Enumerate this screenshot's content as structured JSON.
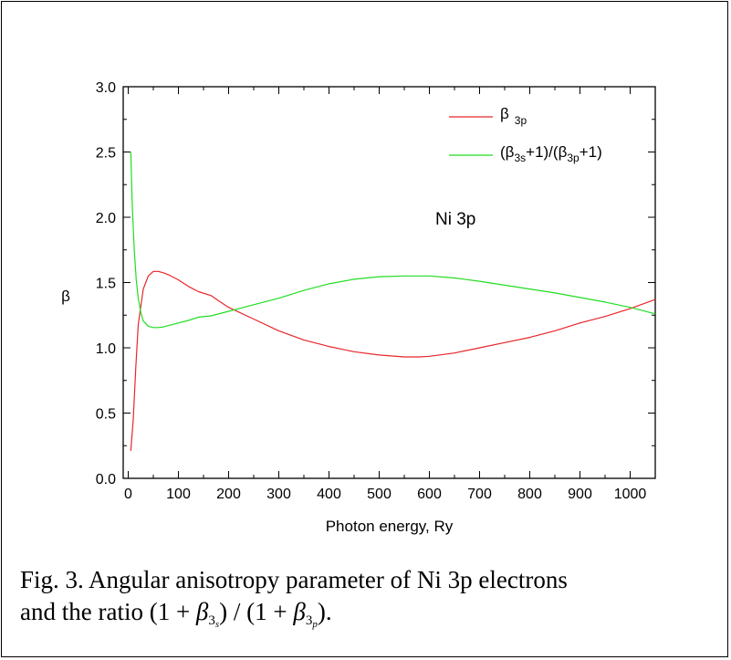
{
  "chart_data": {
    "type": "line",
    "xlabel": "Photon energy, Ry",
    "ylabel": "β",
    "xlim": [
      -10,
      1050
    ],
    "ylim": [
      0.0,
      3.0
    ],
    "xticks": [
      0,
      100,
      200,
      300,
      400,
      500,
      600,
      700,
      800,
      900,
      1000
    ],
    "yticks": [
      "0.0",
      "0.5",
      "1.0",
      "1.5",
      "2.0",
      "2.5",
      "3.0"
    ],
    "annotation": "Ni 3p",
    "legend_position": "top-right",
    "grid": false,
    "series": [
      {
        "name": "β 3p",
        "legend_main": "β",
        "legend_sub": "3p",
        "color": "#e8262a",
        "x": [
          5,
          10,
          15,
          20,
          30,
          40,
          50,
          60,
          70,
          80,
          100,
          120,
          140,
          165,
          180,
          200,
          250,
          300,
          350,
          400,
          450,
          500,
          550,
          580,
          600,
          650,
          700,
          750,
          800,
          850,
          900,
          950,
          1000,
          1050
        ],
        "y": [
          0.21,
          0.45,
          0.85,
          1.18,
          1.45,
          1.55,
          1.585,
          1.585,
          1.575,
          1.56,
          1.52,
          1.47,
          1.43,
          1.4,
          1.36,
          1.31,
          1.22,
          1.13,
          1.06,
          1.01,
          0.97,
          0.945,
          0.93,
          0.93,
          0.935,
          0.96,
          1.0,
          1.04,
          1.08,
          1.13,
          1.19,
          1.24,
          1.3,
          1.37
        ]
      },
      {
        "name": "(β3s+1)/(β3p+1)",
        "legend_parts": [
          "(β",
          "3s",
          "+1)/(β",
          "3p",
          "+1)"
        ],
        "color": "#22dd22",
        "x": [
          5,
          8,
          12,
          16,
          20,
          25,
          30,
          40,
          50,
          60,
          70,
          80,
          100,
          120,
          140,
          165,
          200,
          250,
          300,
          350,
          400,
          450,
          500,
          550,
          580,
          600,
          650,
          700,
          750,
          800,
          850,
          900,
          950,
          1000,
          1050
        ],
        "y": [
          2.5,
          2.1,
          1.75,
          1.52,
          1.38,
          1.27,
          1.205,
          1.165,
          1.155,
          1.155,
          1.16,
          1.17,
          1.19,
          1.21,
          1.235,
          1.245,
          1.28,
          1.33,
          1.38,
          1.44,
          1.49,
          1.525,
          1.545,
          1.55,
          1.55,
          1.55,
          1.535,
          1.51,
          1.48,
          1.45,
          1.42,
          1.385,
          1.35,
          1.31,
          1.26
        ]
      }
    ]
  },
  "caption": {
    "line1": "Fig. 3. Angular anisotropy parameter of Ni 3p electrons",
    "line2_prefix": "and the ratio",
    "formula_open": "(1 + ",
    "beta": "β",
    "sub_main": "3",
    "sub_s": "s",
    "sub_p": "p",
    "formula_mid": ") / (1 + ",
    "formula_close": ")",
    "period": "."
  }
}
